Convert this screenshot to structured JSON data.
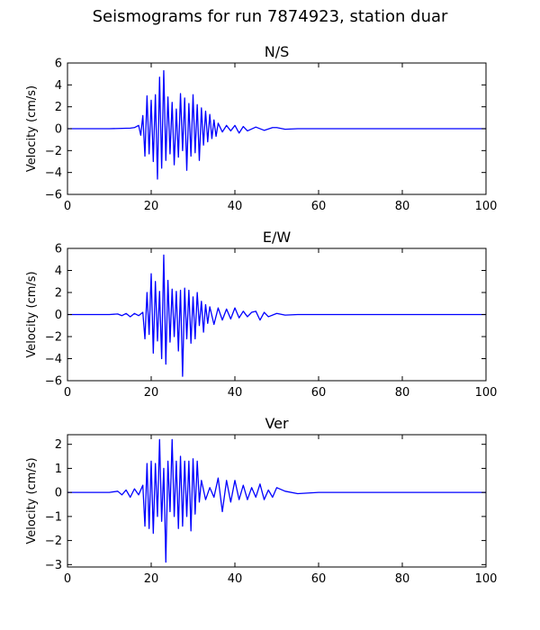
{
  "figure": {
    "suptitle": "Seismograms for run 7874923, station duar"
  },
  "chart_data": [
    {
      "type": "line",
      "title": "N/S",
      "xlabel": "",
      "ylabel": "Velocity (cm/s)",
      "xlim": [
        0,
        100
      ],
      "ylim": [
        -6,
        6
      ],
      "xticks": [
        0,
        20,
        40,
        60,
        80,
        100
      ],
      "yticks": [
        -6,
        -4,
        -2,
        0,
        2,
        4,
        6
      ],
      "grid": false,
      "color": "#0000ff",
      "series": [
        {
          "x": [
            0,
            10,
            15,
            16,
            17,
            17.5,
            18,
            18.5,
            19,
            19.5,
            20,
            20.5,
            21,
            21.5,
            22,
            22.5,
            23,
            23.5,
            24,
            24.5,
            25,
            25.5,
            26,
            26.5,
            27,
            27.5,
            28,
            28.5,
            29,
            29.5,
            30,
            30.5,
            31,
            31.5,
            32,
            32.5,
            33,
            33.5,
            34,
            34.5,
            35,
            35.5,
            36,
            37,
            38,
            39,
            40,
            41,
            42,
            43,
            45,
            47,
            49,
            50,
            52,
            55,
            60,
            80,
            100
          ],
          "y": [
            0,
            0,
            0.05,
            0.1,
            0.3,
            -0.6,
            1.2,
            -2.5,
            3.0,
            -2.3,
            2.6,
            -3.0,
            3.1,
            -4.6,
            4.7,
            -3.6,
            5.3,
            -2.9,
            2.9,
            -2.3,
            2.4,
            -3.3,
            1.8,
            -2.6,
            3.2,
            -2.0,
            2.8,
            -3.8,
            2.3,
            -2.5,
            3.1,
            -2.2,
            2.2,
            -2.9,
            1.9,
            -1.5,
            1.6,
            -1.2,
            1.3,
            -0.9,
            0.8,
            -0.7,
            0.5,
            -0.3,
            0.3,
            -0.2,
            0.3,
            -0.4,
            0.2,
            -0.2,
            0.15,
            -0.15,
            0.1,
            0.1,
            -0.05,
            0,
            0,
            0,
            0
          ]
        }
      ]
    },
    {
      "type": "line",
      "title": "E/W",
      "xlabel": "",
      "ylabel": "Velocity (cm/s)",
      "xlim": [
        0,
        100
      ],
      "ylim": [
        -6,
        6
      ],
      "xticks": [
        0,
        20,
        40,
        60,
        80,
        100
      ],
      "yticks": [
        -6,
        -4,
        -2,
        0,
        2,
        4,
        6
      ],
      "grid": false,
      "color": "#0000ff",
      "series": [
        {
          "x": [
            0,
            10,
            12,
            13,
            14,
            15,
            16,
            17,
            18,
            18.5,
            19,
            19.5,
            20,
            20.5,
            21,
            21.5,
            22,
            22.5,
            23,
            23.5,
            24,
            24.5,
            25,
            25.5,
            26,
            26.5,
            27,
            27.5,
            28,
            28.5,
            29,
            29.5,
            30,
            30.5,
            31,
            31.5,
            32,
            32.5,
            33,
            33.5,
            34,
            35,
            36,
            37,
            38,
            39,
            40,
            41,
            42,
            43,
            44,
            45,
            46,
            47,
            48,
            50,
            52,
            55,
            60,
            80,
            100
          ],
          "y": [
            0,
            0,
            0.05,
            -0.1,
            0.1,
            -0.2,
            0.1,
            -0.1,
            0.2,
            -2.2,
            2.0,
            -1.8,
            3.7,
            -3.5,
            3.0,
            -2.4,
            2.1,
            -4.0,
            5.4,
            -4.5,
            3.1,
            -2.5,
            2.3,
            -2.0,
            2.1,
            -3.3,
            2.2,
            -5.6,
            2.4,
            -2.2,
            2.2,
            -2.6,
            1.6,
            -2.2,
            2.0,
            -1.0,
            1.2,
            -1.6,
            0.9,
            -0.8,
            0.7,
            -0.9,
            0.6,
            -0.5,
            0.5,
            -0.4,
            0.6,
            -0.3,
            0.3,
            -0.2,
            0.2,
            0.3,
            -0.5,
            0.2,
            -0.2,
            0.1,
            -0.05,
            0,
            0,
            0,
            0
          ]
        }
      ]
    },
    {
      "type": "line",
      "title": "Ver",
      "xlabel": "",
      "ylabel": "Velocity (cm/s)",
      "xlim": [
        0,
        100
      ],
      "ylim": [
        -3.1,
        2.4
      ],
      "xticks": [
        0,
        20,
        40,
        60,
        80,
        100
      ],
      "yticks": [
        -3,
        -2,
        -1,
        0,
        1,
        2
      ],
      "grid": false,
      "color": "#0000ff",
      "series": [
        {
          "x": [
            0,
            10,
            12,
            13,
            14,
            15,
            16,
            17,
            18,
            18.5,
            19,
            19.5,
            20,
            20.5,
            21,
            21.5,
            22,
            22.5,
            23,
            23.5,
            24,
            24.5,
            25,
            25.5,
            26,
            26.5,
            27,
            27.5,
            28,
            28.5,
            29,
            29.5,
            30,
            30.5,
            31,
            31.5,
            32,
            33,
            34,
            35,
            36,
            37,
            38,
            39,
            40,
            41,
            42,
            43,
            44,
            45,
            46,
            47,
            48,
            49,
            50,
            52,
            55,
            60,
            80,
            100
          ],
          "y": [
            0,
            0,
            0.05,
            -0.1,
            0.1,
            -0.2,
            0.15,
            -0.1,
            0.3,
            -1.4,
            1.2,
            -1.5,
            1.3,
            -1.7,
            1.2,
            -1.0,
            2.2,
            -1.2,
            1.0,
            -2.9,
            1.3,
            -0.8,
            2.2,
            -1.0,
            1.3,
            -1.5,
            1.5,
            -1.4,
            1.3,
            -1.0,
            1.3,
            -1.6,
            1.4,
            -0.9,
            1.3,
            -0.4,
            0.5,
            -0.3,
            0.2,
            -0.2,
            0.6,
            -0.8,
            0.5,
            -0.4,
            0.5,
            -0.3,
            0.3,
            -0.3,
            0.2,
            -0.2,
            0.35,
            -0.3,
            0.1,
            -0.2,
            0.2,
            0.05,
            -0.05,
            0,
            0,
            0
          ]
        }
      ]
    }
  ]
}
